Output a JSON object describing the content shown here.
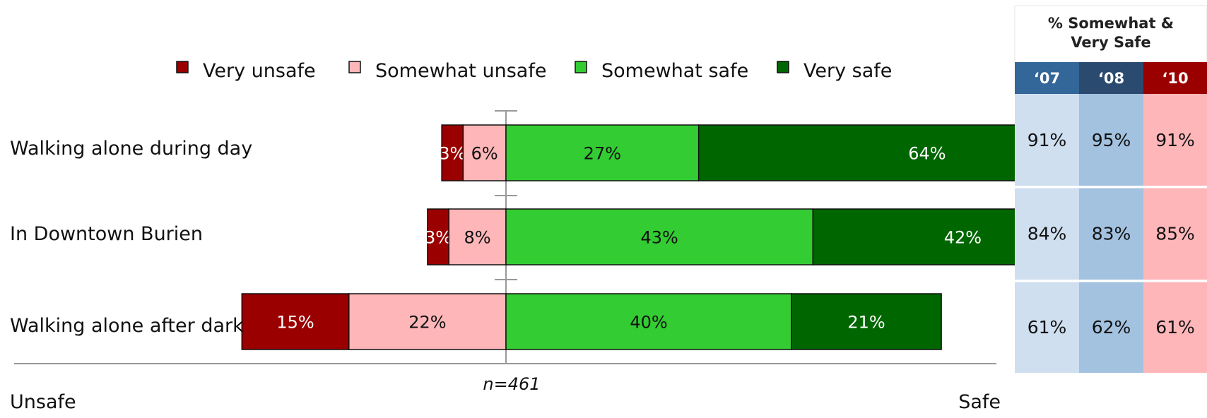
{
  "chart_data": {
    "type": "bar",
    "orientation": "horizontal-diverging-stacked",
    "legend": [
      {
        "name": "Very unsafe",
        "color": "#9b0000"
      },
      {
        "name": "Somewhat unsafe",
        "color": "#ffb6b9"
      },
      {
        "name": "Somewhat safe",
        "color": "#33cc33"
      },
      {
        "name": "Very safe",
        "color": "#006600"
      }
    ],
    "categories": [
      "Walking alone during day",
      "In Downtown Burien",
      "Walking alone after dark"
    ],
    "series": [
      {
        "name": "Very unsafe",
        "values": [
          3,
          3,
          15
        ],
        "labels": [
          "3%",
          "3%",
          "15%"
        ]
      },
      {
        "name": "Somewhat unsafe",
        "values": [
          6,
          8,
          22
        ],
        "labels": [
          "6%",
          "8%",
          "22%"
        ]
      },
      {
        "name": "Somewhat safe",
        "values": [
          27,
          43,
          40
        ],
        "labels": [
          "27%",
          "43%",
          "40%"
        ]
      },
      {
        "name": "Very safe",
        "values": [
          64,
          42,
          21
        ],
        "labels": [
          "64%",
          "42%",
          "21%"
        ]
      }
    ],
    "axis_left_label": "Unsafe",
    "axis_right_label": "Safe",
    "sample_note": "n=461",
    "side_table": {
      "header": [
        "% Somewhat &",
        "Very Safe"
      ],
      "years": [
        {
          "label": "‘07",
          "header_color": "#336699",
          "cell_color": "#cfdff0"
        },
        {
          "label": "‘08",
          "header_color": "#2b4a6f",
          "cell_color": "#a3c2e0"
        },
        {
          "label": "‘10",
          "header_color": "#9b0000",
          "cell_color": "#ffb6b9"
        }
      ],
      "rows": [
        [
          "91%",
          "95%",
          "91%"
        ],
        [
          "84%",
          "83%",
          "85%"
        ],
        [
          "61%",
          "62%",
          "61%"
        ]
      ]
    }
  }
}
